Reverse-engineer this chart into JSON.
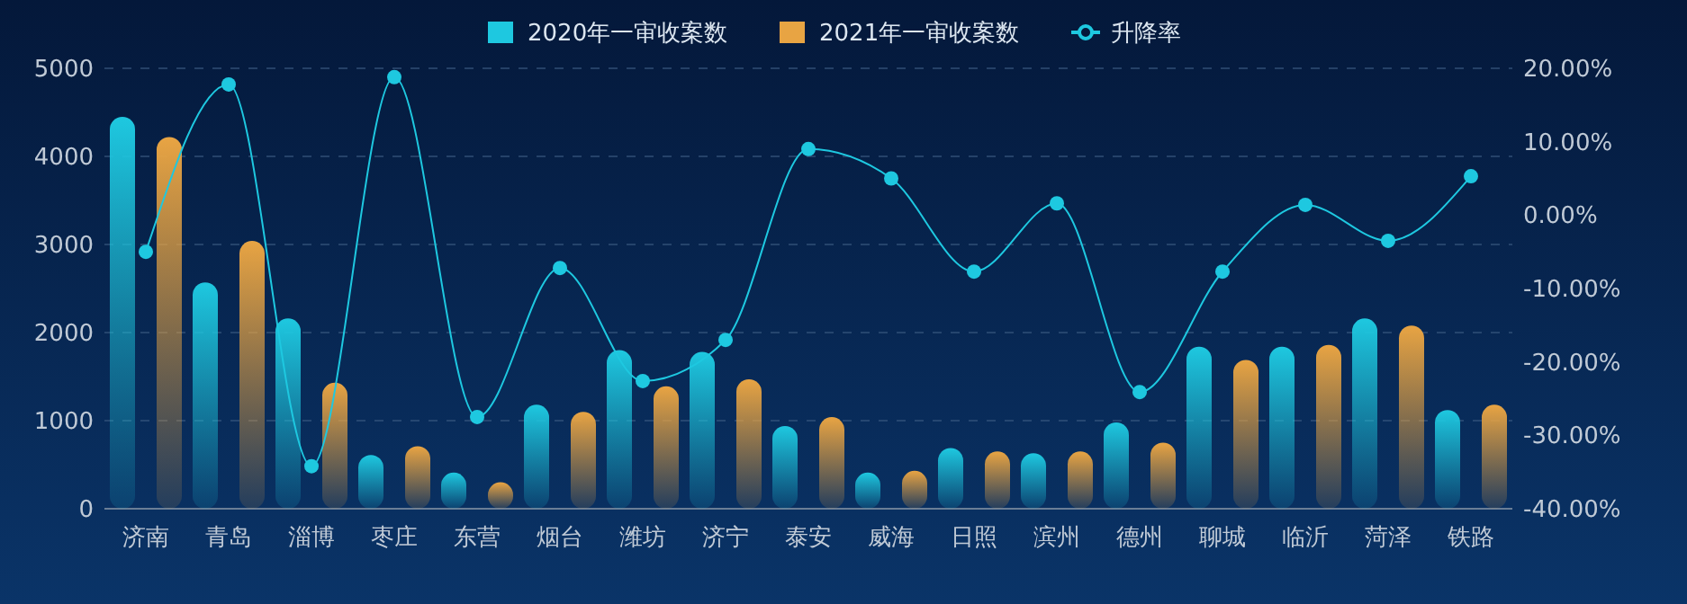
{
  "chart_data": {
    "type": "bar",
    "categories": [
      "济南",
      "青岛",
      "淄博",
      "枣庄",
      "东营",
      "烟台",
      "潍坊",
      "济宁",
      "泰安",
      "威海",
      "日照",
      "滨州",
      "德州",
      "聊城",
      "临沂",
      "菏泽",
      "铁路"
    ],
    "series": [
      {
        "name": "2020年一审收案数",
        "color": "#1ec8e0",
        "values": [
          4450,
          2570,
          2160,
          610,
          410,
          1180,
          1800,
          1780,
          940,
          410,
          690,
          630,
          980,
          1840,
          1840,
          2160,
          1120
        ]
      },
      {
        "name": "2021年一审收案数",
        "color": "#e8a443",
        "values": [
          4220,
          3040,
          1430,
          710,
          300,
          1100,
          1390,
          1470,
          1040,
          430,
          650,
          650,
          750,
          1690,
          1860,
          2080,
          1180
        ]
      },
      {
        "name": "升降率",
        "type": "line",
        "axis": "y2",
        "color": "#1ec8e0",
        "marker": "circle",
        "line_style": "solid",
        "values": [
          -5.0,
          17.8,
          -34.2,
          18.8,
          -27.5,
          -7.2,
          -22.6,
          -17.0,
          9.0,
          5.0,
          -7.7,
          1.6,
          -24.1,
          -7.7,
          1.4,
          -3.5,
          5.3
        ]
      }
    ],
    "ylim": [
      0,
      5000
    ],
    "yticks": [
      0,
      1000,
      2000,
      3000,
      4000,
      5000
    ],
    "y2lim": [
      -40,
      20
    ],
    "y2ticks": [
      {
        "value": -40,
        "label": "-40.00%"
      },
      {
        "value": -30,
        "label": "-30.00%"
      },
      {
        "value": -20,
        "label": "-20.00%"
      },
      {
        "value": -10,
        "label": "-10.00%"
      },
      {
        "value": 0,
        "label": "0.00%"
      },
      {
        "value": 10,
        "label": "10.00%"
      },
      {
        "value": 20,
        "label": "20.00%"
      }
    ],
    "grid": "y",
    "legend": "top"
  }
}
